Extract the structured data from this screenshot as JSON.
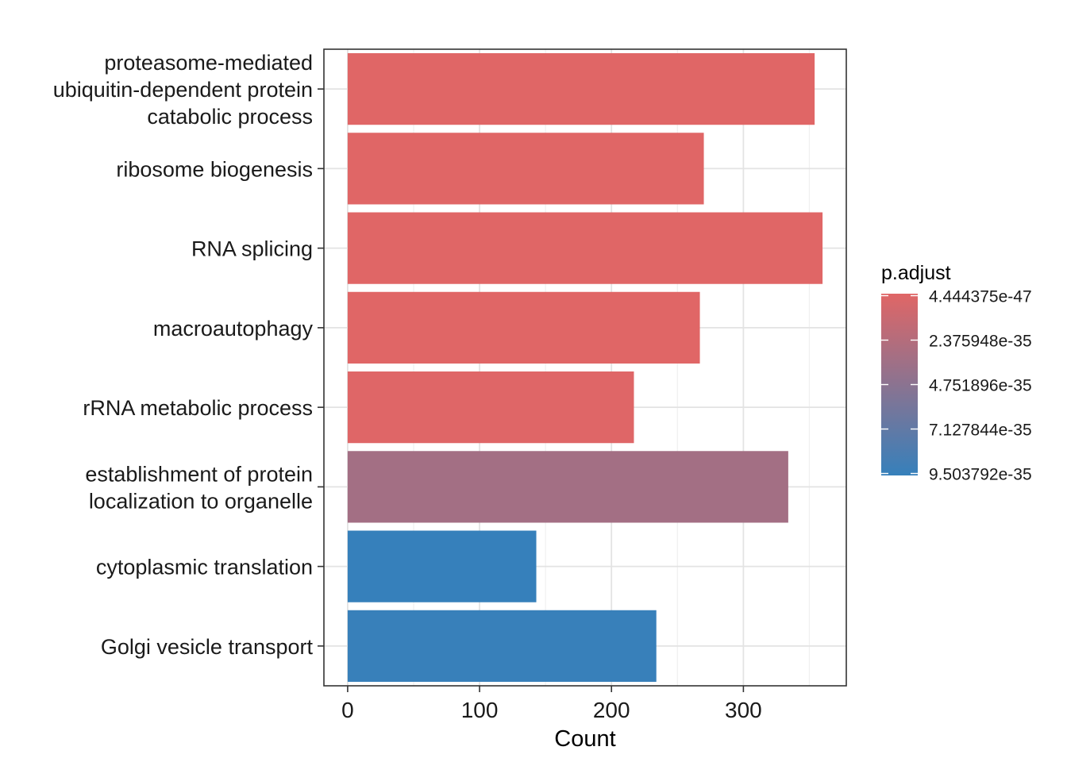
{
  "chart_data": {
    "type": "bar",
    "orientation": "horizontal",
    "categories": [
      "proteasome-mediated\nubiquitin-dependent protein\ncatabolic process",
      "ribosome biogenesis",
      "RNA splicing",
      "macroautophagy",
      "rRNA metabolic process",
      "establishment of protein\nlocalization to organelle",
      "cytoplasmic translation",
      "Golgi vesicle transport"
    ],
    "values": [
      354,
      270,
      360,
      267,
      217,
      334,
      143,
      234
    ],
    "p_adjust": [
      4.444375e-47,
      1e-40,
      2e-40,
      3e-40,
      8e-37,
      3.4e-35,
      9.503792e-35,
      9.4e-35
    ],
    "xlabel": "Count",
    "ylabel": "",
    "xlim": [
      -18,
      378
    ],
    "x_ticks": [
      0,
      100,
      200,
      300
    ],
    "grid": true,
    "legend": {
      "title": "p.adjust",
      "placement": "right",
      "type": "gradient",
      "labels": [
        "4.444375e-47",
        "2.375948e-35",
        "4.751896e-35",
        "7.127844e-35",
        "9.503792e-35"
      ],
      "color_low": "#e06666",
      "color_high": "#3680bb"
    }
  }
}
